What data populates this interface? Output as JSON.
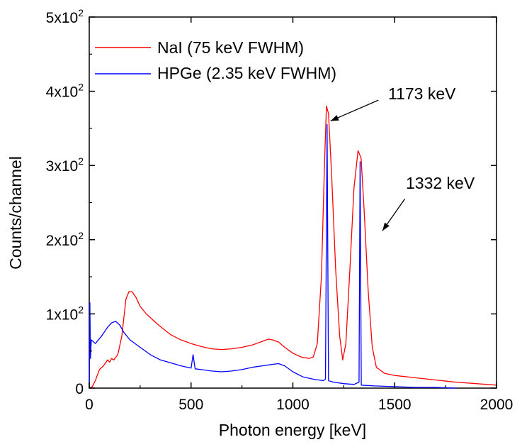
{
  "chart_data": {
    "type": "line",
    "xlabel": "Photon energy [keV]",
    "ylabel": "Counts/channel",
    "xlim": [
      0,
      2000
    ],
    "ylim": [
      0,
      500
    ],
    "x_ticks": [
      0,
      500,
      1000,
      1500,
      2000
    ],
    "x_tick_labels": [
      "0",
      "500",
      "1000",
      "1500",
      "2000"
    ],
    "y_ticks": [
      0,
      100,
      200,
      300,
      400,
      500
    ],
    "y_tick_labels": [
      {
        "base": "0",
        "exp": ""
      },
      {
        "base": "1x10",
        "exp": "2"
      },
      {
        "base": "2x10",
        "exp": "2"
      },
      {
        "base": "3x10",
        "exp": "2"
      },
      {
        "base": "4x10",
        "exp": "2"
      },
      {
        "base": "5x10",
        "exp": "2"
      }
    ],
    "grid": false,
    "legend_position": "top-left",
    "series": [
      {
        "name": "NaI (75 keV FWHM)",
        "color": "#ff0000",
        "points": [
          [
            0,
            0
          ],
          [
            15,
            2
          ],
          [
            30,
            10
          ],
          [
            50,
            25
          ],
          [
            70,
            30
          ],
          [
            90,
            38
          ],
          [
            100,
            35
          ],
          [
            110,
            40
          ],
          [
            120,
            38
          ],
          [
            140,
            45
          ],
          [
            160,
            70
          ],
          [
            180,
            120
          ],
          [
            195,
            130
          ],
          [
            210,
            130
          ],
          [
            230,
            122
          ],
          [
            250,
            110
          ],
          [
            280,
            100
          ],
          [
            300,
            95
          ],
          [
            340,
            85
          ],
          [
            400,
            72
          ],
          [
            450,
            65
          ],
          [
            500,
            60
          ],
          [
            550,
            56
          ],
          [
            600,
            53
          ],
          [
            650,
            52
          ],
          [
            700,
            53
          ],
          [
            750,
            55
          ],
          [
            800,
            58
          ],
          [
            850,
            63
          ],
          [
            880,
            66
          ],
          [
            900,
            65
          ],
          [
            930,
            62
          ],
          [
            960,
            55
          ],
          [
            1000,
            47
          ],
          [
            1040,
            42
          ],
          [
            1080,
            40
          ],
          [
            1100,
            42
          ],
          [
            1120,
            60
          ],
          [
            1140,
            150
          ],
          [
            1155,
            300
          ],
          [
            1165,
            380
          ],
          [
            1175,
            370
          ],
          [
            1190,
            290
          ],
          [
            1210,
            160
          ],
          [
            1230,
            70
          ],
          [
            1245,
            38
          ],
          [
            1260,
            60
          ],
          [
            1280,
            160
          ],
          [
            1300,
            270
          ],
          [
            1320,
            320
          ],
          [
            1335,
            310
          ],
          [
            1350,
            240
          ],
          [
            1370,
            130
          ],
          [
            1390,
            55
          ],
          [
            1410,
            28
          ],
          [
            1450,
            20
          ],
          [
            1500,
            17
          ],
          [
            1600,
            14
          ],
          [
            1700,
            11
          ],
          [
            1800,
            8
          ],
          [
            1900,
            6
          ],
          [
            2000,
            4
          ]
        ]
      },
      {
        "name": "HPGe (2.35 keV FWHM)",
        "color": "#0000ff",
        "points": [
          [
            0,
            0
          ],
          [
            3,
            115
          ],
          [
            6,
            40
          ],
          [
            10,
            65
          ],
          [
            30,
            60
          ],
          [
            60,
            70
          ],
          [
            90,
            82
          ],
          [
            110,
            88
          ],
          [
            130,
            90
          ],
          [
            150,
            85
          ],
          [
            170,
            75
          ],
          [
            200,
            65
          ],
          [
            250,
            55
          ],
          [
            300,
            45
          ],
          [
            350,
            38
          ],
          [
            400,
            34
          ],
          [
            450,
            30
          ],
          [
            500,
            27
          ],
          [
            510,
            45
          ],
          [
            520,
            26
          ],
          [
            550,
            25
          ],
          [
            600,
            23
          ],
          [
            650,
            22
          ],
          [
            700,
            23
          ],
          [
            750,
            25
          ],
          [
            800,
            28
          ],
          [
            850,
            30
          ],
          [
            900,
            32
          ],
          [
            930,
            33
          ],
          [
            960,
            30
          ],
          [
            1000,
            22
          ],
          [
            1050,
            15
          ],
          [
            1100,
            12
          ],
          [
            1150,
            10
          ],
          [
            1160,
            12
          ],
          [
            1168,
            355
          ],
          [
            1175,
            10
          ],
          [
            1200,
            8
          ],
          [
            1250,
            6
          ],
          [
            1300,
            5
          ],
          [
            1325,
            8
          ],
          [
            1330,
            305
          ],
          [
            1336,
            4
          ],
          [
            1400,
            3
          ],
          [
            1500,
            2
          ],
          [
            1600,
            1
          ],
          [
            1700,
            1
          ],
          [
            1800,
            0
          ]
        ]
      }
    ],
    "annotations": [
      {
        "text": "1173 keV",
        "x": 1450,
        "y": 400,
        "arrow_from": [
          1420,
          388
        ],
        "arrow_to": [
          1185,
          360
        ]
      },
      {
        "text": "1332 keV",
        "x": 1560,
        "y": 270,
        "arrow_from": [
          1550,
          255
        ],
        "arrow_to": [
          1440,
          212
        ]
      }
    ]
  }
}
